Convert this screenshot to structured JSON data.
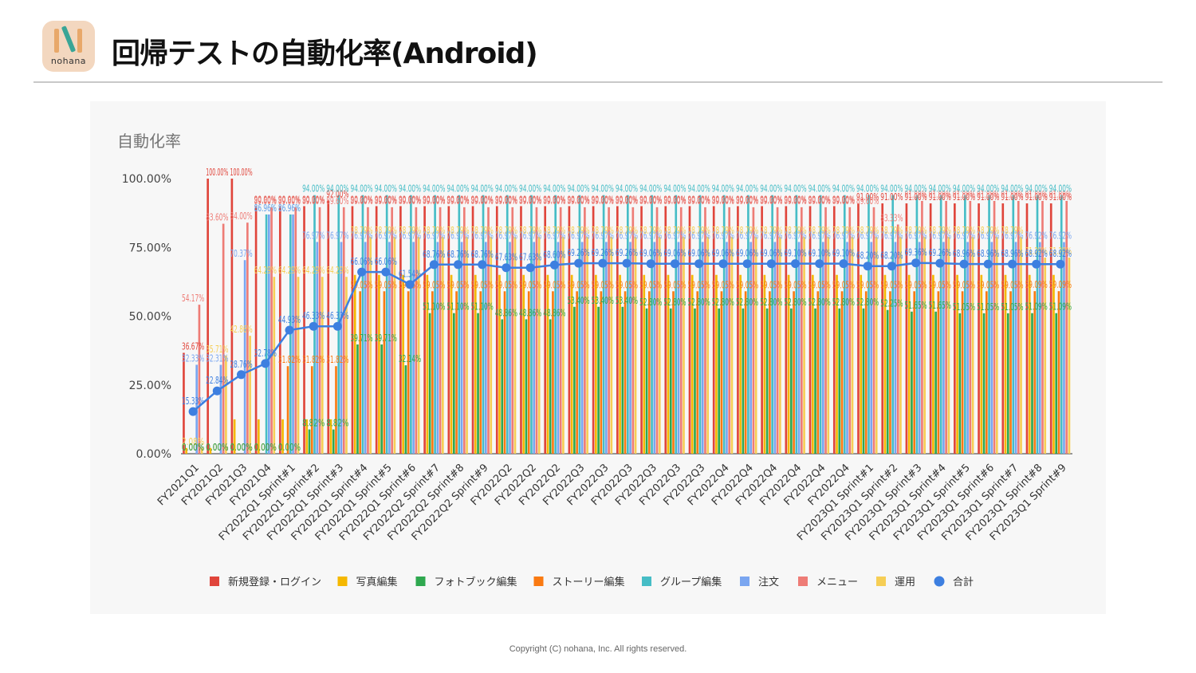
{
  "header": {
    "logo_text": "nohana",
    "title": "回帰テストの自動化率(Android)"
  },
  "footer": {
    "copyright": "Copyright (C) nohana, Inc. All rights reserved."
  },
  "colors": {
    "logo_bg": "#f3d7bf",
    "series": [
      "#e0453b",
      "#f5b800",
      "#2fa84f",
      "#fa7a12",
      "#46bdc6",
      "#7aa6f0",
      "#ee7c76",
      "#f6ce55",
      "#3d7fe0"
    ]
  },
  "chart_data": {
    "type": "bar",
    "title": "自動化率",
    "xlabel": "",
    "ylabel": "",
    "ylim": [
      0,
      100
    ],
    "y_ticks": [
      "0.00%",
      "25.00%",
      "50.00%",
      "75.00%",
      "100.00%"
    ],
    "grid": false,
    "legend_position": "bottom",
    "categories": [
      "FY2021Q1",
      "FY2021Q2",
      "FY2021Q3",
      "FY2021Q4",
      "FY2022Q1 Sprint#1",
      "FY2022Q1 Sprint#2",
      "FY2022Q1 Sprint#3",
      "FY2022Q1 Sprint#4",
      "FY2022Q1 Sprint#5",
      "FY2022Q1 Sprint#6",
      "FY2022Q2 Sprint#7",
      "FY2022Q2 Sprint#8",
      "FY2022Q2 Sprint#9",
      "FY2022Q2",
      "FY2022Q2",
      "FY2022Q2",
      "FY2022Q3",
      "FY2022Q3",
      "FY2022Q3",
      "FY2022Q3",
      "FY2022Q3",
      "FY2022Q3",
      "FY2022Q4",
      "FY2022Q4",
      "FY2022Q4",
      "FY2022Q4",
      "FY2022Q4",
      "FY2022Q4",
      "FY2023Q1 Sprint#1",
      "FY2023Q1 Sprint#2",
      "FY2023Q1 Sprint#3",
      "FY2023Q1 Sprint#4",
      "FY2023Q1 Sprint#5",
      "FY2023Q1 Sprint#6",
      "FY2023Q1 Sprint#7",
      "FY2023Q1 Sprint#8",
      "FY2023Q1 Sprint#9"
    ],
    "series": [
      {
        "name": "新規登録・ログイン",
        "type": "bar",
        "values": [
          36.67,
          100,
          100,
          90,
          90,
          90,
          92,
          90,
          90,
          90,
          90,
          90,
          90,
          90,
          90,
          90,
          90,
          90,
          90,
          90,
          90,
          90,
          90,
          90,
          90,
          90,
          90,
          90,
          91,
          91,
          91,
          91,
          91,
          91,
          91,
          91,
          91
        ]
      },
      {
        "name": "写真編集",
        "type": "bar",
        "values": [
          2.08,
          2.08,
          12.5,
          12.5,
          12.5,
          12.5,
          12.5,
          65,
          65,
          65,
          65,
          65,
          65,
          65,
          65,
          65,
          65,
          65,
          65,
          65,
          65,
          65,
          65,
          65,
          65,
          65,
          65,
          65,
          65,
          65,
          65,
          65,
          65,
          65,
          65,
          65,
          65
        ]
      },
      {
        "name": "フォトブック編集",
        "type": "bar",
        "values": [
          0,
          0,
          0,
          0,
          0,
          8.82,
          8.82,
          39.71,
          39.71,
          32.14,
          51.1,
          51.1,
          51.1,
          48.86,
          48.86,
          48.86,
          53.4,
          53.4,
          53.4,
          52.8,
          52.8,
          52.8,
          52.8,
          52.8,
          52.8,
          52.8,
          52.8,
          52.8,
          52.8,
          52.25,
          51.65,
          51.65,
          51.05,
          51.05,
          51.05,
          51.09,
          51.09
        ]
      },
      {
        "name": "ストーリー編集",
        "type": "bar",
        "values": [
          0,
          0,
          0,
          0,
          31.82,
          31.82,
          31.82,
          59.05,
          59.05,
          59.05,
          59.05,
          59.05,
          59.05,
          59.05,
          59.05,
          59.05,
          59.05,
          59.05,
          59.05,
          59.05,
          59.05,
          59.05,
          59.05,
          59.05,
          59.05,
          59.05,
          59.05,
          59.05,
          59.05,
          59.05,
          59.05,
          59.05,
          59.05,
          59.05,
          59.05,
          59.09,
          59.09
        ]
      },
      {
        "name": "グループ編集",
        "type": "bar",
        "values": [
          0,
          0,
          0,
          86.96,
          86.96,
          94,
          94,
          94,
          94,
          94,
          94,
          94,
          94,
          94,
          94,
          94,
          94,
          94,
          94,
          94,
          94,
          94,
          94,
          94,
          94,
          94,
          94,
          94,
          94,
          94,
          94,
          94,
          94,
          94,
          94,
          94,
          94
        ]
      },
      {
        "name": "注文",
        "type": "bar",
        "values": [
          32.33,
          32.31,
          70.37,
          86.96,
          86.96,
          76.97,
          76.97,
          76.97,
          76.97,
          76.97,
          76.97,
          76.97,
          76.97,
          76.97,
          76.97,
          76.97,
          76.97,
          76.97,
          76.97,
          76.97,
          76.97,
          76.97,
          76.97,
          76.97,
          76.97,
          76.97,
          76.97,
          76.97,
          76.97,
          76.97,
          76.97,
          76.97,
          76.97,
          76.97,
          76.97,
          76.92,
          76.92
        ]
      },
      {
        "name": "メニュー",
        "type": "bar",
        "values": [
          54.17,
          83.6,
          84.0,
          89.6,
          89.6,
          89.6,
          89.6,
          89.6,
          89.6,
          89.6,
          89.6,
          89.6,
          89.6,
          89.6,
          89.6,
          89.6,
          89.6,
          89.6,
          89.6,
          89.6,
          89.6,
          89.6,
          89.6,
          89.6,
          89.6,
          89.6,
          89.6,
          89.6,
          89.6,
          83.33,
          91.89,
          91.89,
          91.89,
          91.89,
          91.89,
          91.89,
          91.89
        ]
      },
      {
        "name": "運用",
        "type": "bar",
        "values": [
          2.08,
          35.71,
          42.86,
          64.29,
          64.29,
          64.29,
          64.29,
          78.79,
          78.79,
          78.79,
          78.79,
          78.79,
          78.79,
          78.79,
          78.79,
          78.79,
          78.79,
          78.79,
          78.79,
          78.79,
          78.79,
          78.79,
          78.79,
          78.79,
          78.79,
          78.79,
          78.79,
          78.79,
          78.79,
          78.79,
          78.79,
          78.79,
          78.79,
          78.79,
          78.79,
          71.29,
          71.29
        ]
      },
      {
        "name": "合計",
        "type": "line",
        "values": [
          15.33,
          22.84,
          28.76,
          32.78,
          44.93,
          46.33,
          46.33,
          66.06,
          66.06,
          61.54,
          68.76,
          68.76,
          68.76,
          67.63,
          67.63,
          68.6,
          69.26,
          69.26,
          69.26,
          69.06,
          69.06,
          69.06,
          69.06,
          69.06,
          69.06,
          69.1,
          69.1,
          69.1,
          68.2,
          68.2,
          69.36,
          69.26,
          68.96,
          68.96,
          68.96,
          68.92,
          68.92
        ]
      }
    ]
  }
}
